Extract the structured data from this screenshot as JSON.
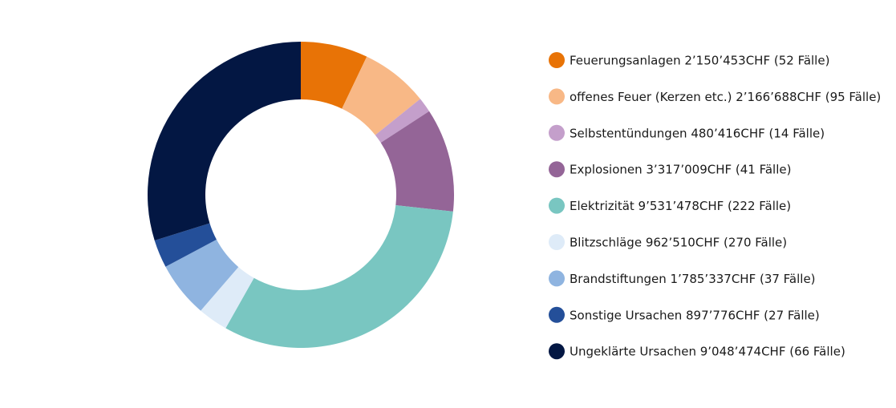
{
  "chart_data": {
    "type": "pie",
    "variant": "donut",
    "title": "",
    "legend_position": "right",
    "slices": [
      {
        "label": "Feuerungsanlagen  2’150’453CHF (52 Fälle)",
        "value": 2150453,
        "color": "#e87306"
      },
      {
        "label": "offenes Feuer (Kerzen etc.)  2’166’688CHF  (95 Fälle)",
        "value": 2166688,
        "color": "#f8b886"
      },
      {
        "label": "Selbstentündungen  480’416CHF  (14 Fälle)",
        "value": 480416,
        "color": "#c49fcb"
      },
      {
        "label": "Explosionen  3’317’009CHF  (41 Fälle)",
        "value": 3317009,
        "color": "#946597"
      },
      {
        "label": "Elektrizität  9’531’478CHF  (222 Fälle)",
        "value": 9531478,
        "color": "#79c6c1"
      },
      {
        "label": "Blitzschläge  962’510CHF  (270 Fälle)",
        "value": 962510,
        "color": "#deebf8"
      },
      {
        "label": "Brandstiftungen  1’785’337CHF  (37 Fälle)",
        "value": 1785337,
        "color": "#8fb4e0"
      },
      {
        "label": "Sonstige Ursachen  897’776CHF  (27 Fälle)",
        "value": 897776,
        "color": "#244f99"
      },
      {
        "label": "Ungeklärte Ursachen  9’048’474CHF  (66 Fälle)",
        "value": 9048474,
        "color": "#031743"
      }
    ]
  }
}
